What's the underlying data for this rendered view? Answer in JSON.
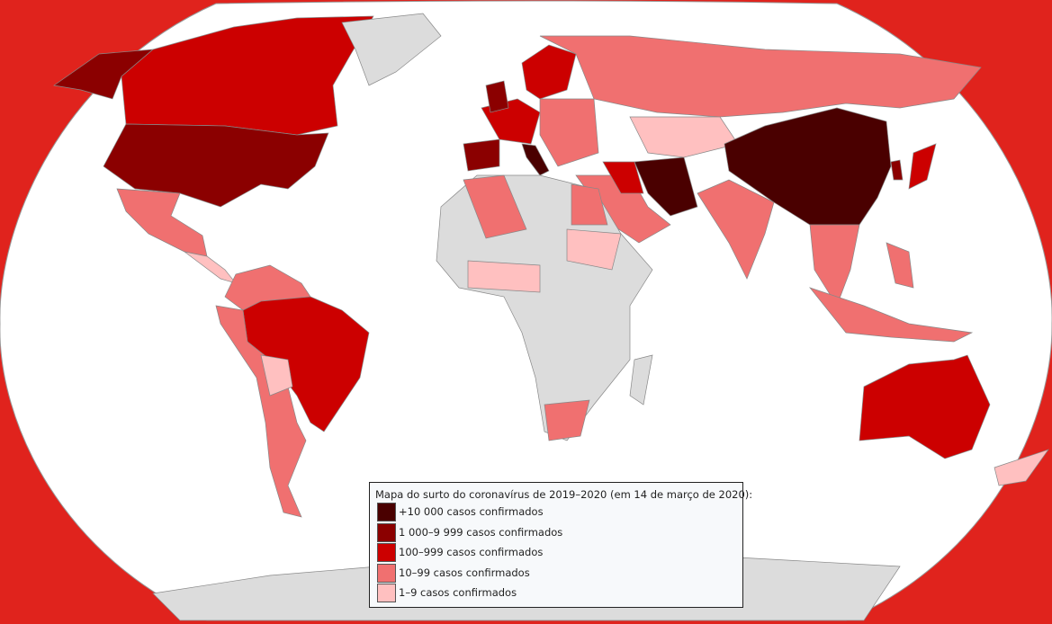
{
  "legend": {
    "title": "Mapa do surto do coronavírus de 2019–2020 (em 14 de março de 2020):",
    "items": [
      {
        "label": "+10 000 casos confirmados",
        "color": "#4a0000"
      },
      {
        "label": "1 000–9 999 casos confirmados",
        "color": "#8b0000"
      },
      {
        "label": "100–999 casos confirmados",
        "color": "#cc0000"
      },
      {
        "label": "10–99 casos confirmados",
        "color": "#f07070"
      },
      {
        "label": "1–9 casos confirmados",
        "color": "#ffc0c0"
      }
    ]
  }
}
